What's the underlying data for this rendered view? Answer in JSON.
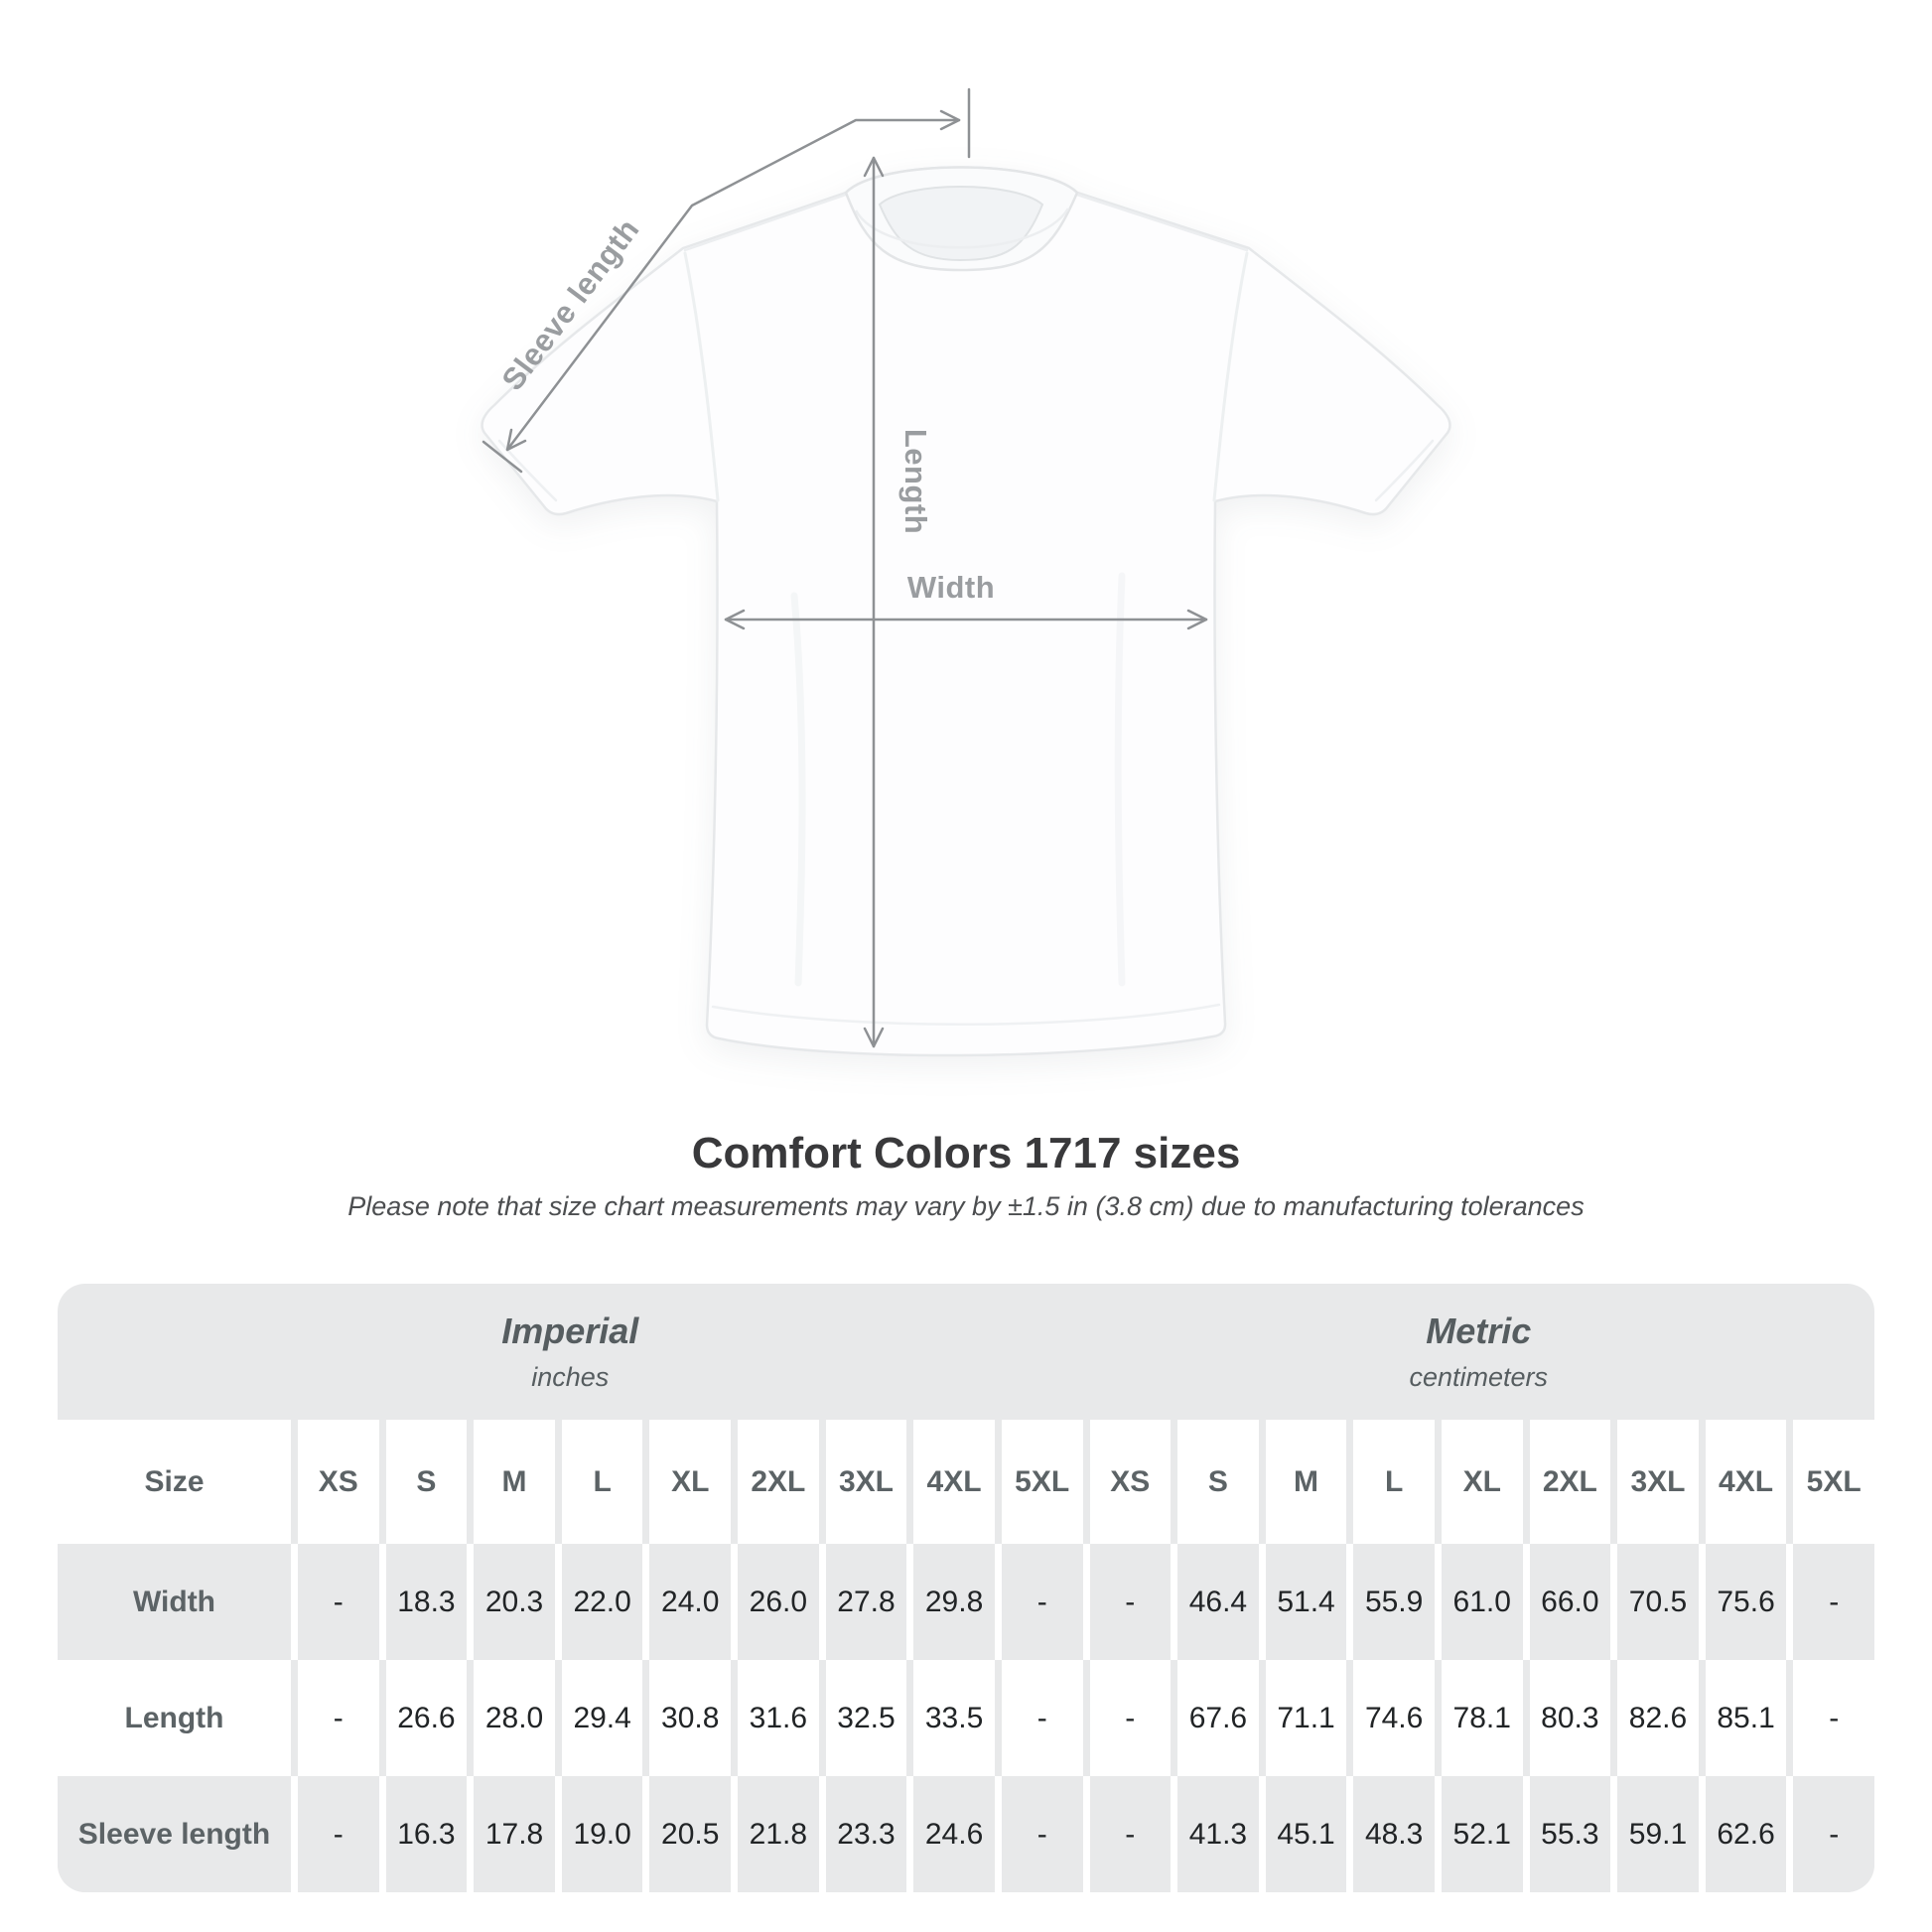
{
  "diagram": {
    "labels": {
      "sleeve_length": "Sleeve length",
      "length": "Length",
      "width": "Width"
    }
  },
  "title": "Comfort Colors 1717 sizes",
  "subtitle": "Please note that size chart measurements may vary by ±1.5 in (3.8 cm) due to manufacturing tolerances",
  "table": {
    "size_label": "Size",
    "sections": [
      {
        "label": "Imperial",
        "unit": "inches"
      },
      {
        "label": "Metric",
        "unit": "centimeters"
      }
    ],
    "sizes": [
      "XS",
      "S",
      "M",
      "L",
      "XL",
      "2XL",
      "3XL",
      "4XL",
      "5XL"
    ],
    "rows": [
      {
        "label": "Width",
        "imperial": [
          "-",
          "18.3",
          "20.3",
          "22.0",
          "24.0",
          "26.0",
          "27.8",
          "29.8",
          "-"
        ],
        "metric": [
          "-",
          "46.4",
          "51.4",
          "55.9",
          "61.0",
          "66.0",
          "70.5",
          "75.6",
          "-"
        ]
      },
      {
        "label": "Length",
        "imperial": [
          "-",
          "26.6",
          "28.0",
          "29.4",
          "30.8",
          "31.6",
          "32.5",
          "33.5",
          "-"
        ],
        "metric": [
          "-",
          "67.6",
          "71.1",
          "74.6",
          "78.1",
          "80.3",
          "82.6",
          "85.1",
          "-"
        ]
      },
      {
        "label": "Sleeve length",
        "imperial": [
          "-",
          "16.3",
          "17.8",
          "19.0",
          "20.5",
          "21.8",
          "23.3",
          "24.6",
          "-"
        ],
        "metric": [
          "-",
          "41.3",
          "45.1",
          "48.3",
          "52.1",
          "55.3",
          "59.1",
          "62.6",
          "-"
        ]
      }
    ]
  },
  "colors": {
    "page_background": "#ffffff",
    "table_gray": "#e8e9ea",
    "table_label_text": "#5c6366",
    "table_value_text": "#212426",
    "title_text": "#39393b",
    "subtitle_text": "#4c4e50",
    "measurement_line": "#8e9194",
    "measurement_label": "#9a9da0",
    "shirt_outline": "#e6e8ea"
  }
}
